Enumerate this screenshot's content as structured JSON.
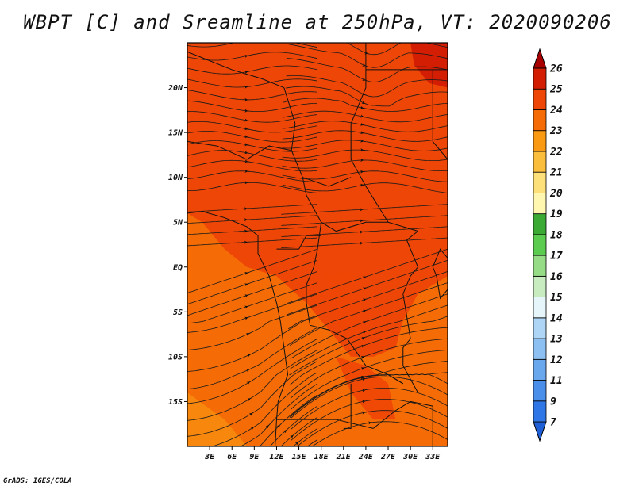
{
  "chart_data": {
    "type": "heatmap",
    "title": "WBPT [C] and Sreamline at 250hPa, VT: 2020090206",
    "variable": "wet-bulb potential temperature with streamlines",
    "x_ticks": [
      "3E",
      "6E",
      "9E",
      "12E",
      "15E",
      "18E",
      "21E",
      "24E",
      "27E",
      "30E",
      "33E"
    ],
    "x_tick_values": [
      3,
      6,
      9,
      12,
      15,
      18,
      21,
      24,
      27,
      30,
      33
    ],
    "y_ticks": [
      "20N",
      "15N",
      "10N",
      "5N",
      "EQ",
      "5S",
      "10S",
      "15S"
    ],
    "y_tick_values": [
      20,
      15,
      10,
      5,
      0,
      -5,
      -10,
      -15
    ],
    "xlim": [
      0,
      35
    ],
    "ylim": [
      -20,
      25
    ],
    "colorbar": {
      "levels": [
        "7",
        "9",
        "11",
        "12",
        "13",
        "14",
        "15",
        "16",
        "17",
        "18",
        "19",
        "20",
        "21",
        "22",
        "23",
        "24",
        "25",
        "26"
      ],
      "colors": [
        "#1f5fd6",
        "#2f77e6",
        "#4a90ea",
        "#6aa8ee",
        "#8cc0f2",
        "#aed4f6",
        "#e6f5fa",
        "#c8ecc0",
        "#96dc86",
        "#5ccc50",
        "#3aaa34",
        "#fff6b0",
        "#fde07a",
        "#fbbd3c",
        "#f99a12",
        "#f56c06",
        "#ee4606",
        "#d41e04",
        "#a80000"
      ],
      "extend": "both"
    },
    "field_summary": {
      "north_of_5N": "23-24",
      "south_of_5N": "22-23",
      "warm_pockets": [
        {
          "lon": 32.5,
          "lat": 23,
          "value": "25"
        },
        {
          "lon": 24,
          "lat": -14,
          "value": "24"
        },
        {
          "lon": 21,
          "lat": -3,
          "value": "24"
        }
      ]
    },
    "streamline_flow": "predominantly easterly (arrows pointing west)"
  },
  "footer": {
    "credit": "GrADS: IGES/COLA"
  }
}
